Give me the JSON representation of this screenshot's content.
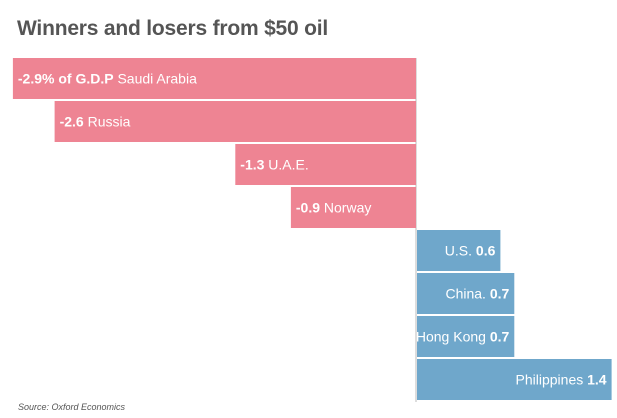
{
  "title": "Winners and losers from $50 oil",
  "source": "Source: Oxford Economics",
  "colors": {
    "negative": "#ee8493",
    "positive": "#6fa7cb",
    "axis": "#bbbbbb"
  },
  "chart_data": {
    "type": "bar",
    "orientation": "horizontal",
    "title": "Winners and losers from $50 oil",
    "unit_note": "% of G.D.P",
    "categories": [
      "Saudi Arabia",
      "Russia",
      "U.A.E.",
      "Norway",
      "U.S.",
      "China",
      "Hong Kong",
      "Philippines"
    ],
    "values": [
      -2.9,
      -2.6,
      -1.3,
      -0.9,
      0.6,
      0.7,
      0.7,
      1.4
    ],
    "labels": [
      {
        "value_text": "-2.9% of G.D.P",
        "name": "Saudi Arabia"
      },
      {
        "value_text": "-2.6",
        "name": "Russia"
      },
      {
        "value_text": "-1.3",
        "name": "U.A.E."
      },
      {
        "value_text": "-0.9",
        "name": "Norway"
      },
      {
        "value_text": "0.6",
        "name": "U.S."
      },
      {
        "value_text": "0.7",
        "name": "China."
      },
      {
        "value_text": "0.7",
        "name": "Hong Kong"
      },
      {
        "value_text": "1.4",
        "name": "Philippines"
      }
    ],
    "xlim": [
      -2.9,
      1.4
    ],
    "grid": false,
    "legend": "none"
  }
}
